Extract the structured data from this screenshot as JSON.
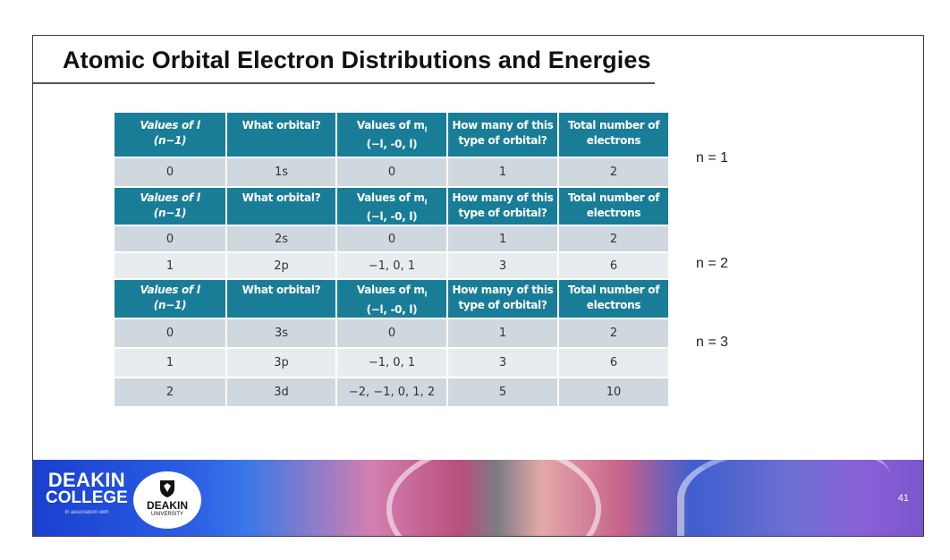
{
  "slide": {
    "title": "Atomic Orbital Electron Distributions and Energies",
    "page_number": "41"
  },
  "table": {
    "header": {
      "col1_line1": "Values of l",
      "col1_line2": "(n−1)",
      "col2": "What orbital?",
      "col3_line1": "Values of m",
      "col3_sub": "l",
      "col3_line2": "(−l, -0, l)",
      "col4_line1": "How many of this",
      "col4_line2": "type of orbital?",
      "col5_line1": "Total number of",
      "col5_line2": "electrons"
    },
    "n1_rows": [
      {
        "l": "0",
        "orbital": "1s",
        "ml": "0",
        "count": "1",
        "electrons": "2"
      }
    ],
    "n2_rows": [
      {
        "l": "0",
        "orbital": "2s",
        "ml": "0",
        "count": "1",
        "electrons": "2"
      },
      {
        "l": "1",
        "orbital": "2p",
        "ml": "−1, 0, 1",
        "count": "3",
        "electrons": "6"
      }
    ],
    "n3_rows": [
      {
        "l": "0",
        "orbital": "3s",
        "ml": "0",
        "count": "1",
        "electrons": "2"
      },
      {
        "l": "1",
        "orbital": "3p",
        "ml": "−1, 0, 1",
        "count": "3",
        "electrons": "6"
      },
      {
        "l": "2",
        "orbital": "3d",
        "ml": "−2, −1, 0, 1, 2",
        "count": "5",
        "electrons": "10"
      }
    ]
  },
  "labels": {
    "n1": "n = 1",
    "n2": "n = 2",
    "n3": "n = 3"
  },
  "footer": {
    "deakin_college_line1": "DEAKIN",
    "deakin_college_line2": "COLLEGE",
    "association": "In association with",
    "university_line1": "DEAKIN",
    "university_line2": "UNIVERSITY"
  },
  "colors": {
    "header_bg": "#1a7d98",
    "row_dark": "#cfd8df",
    "row_light": "#e8ecef"
  }
}
